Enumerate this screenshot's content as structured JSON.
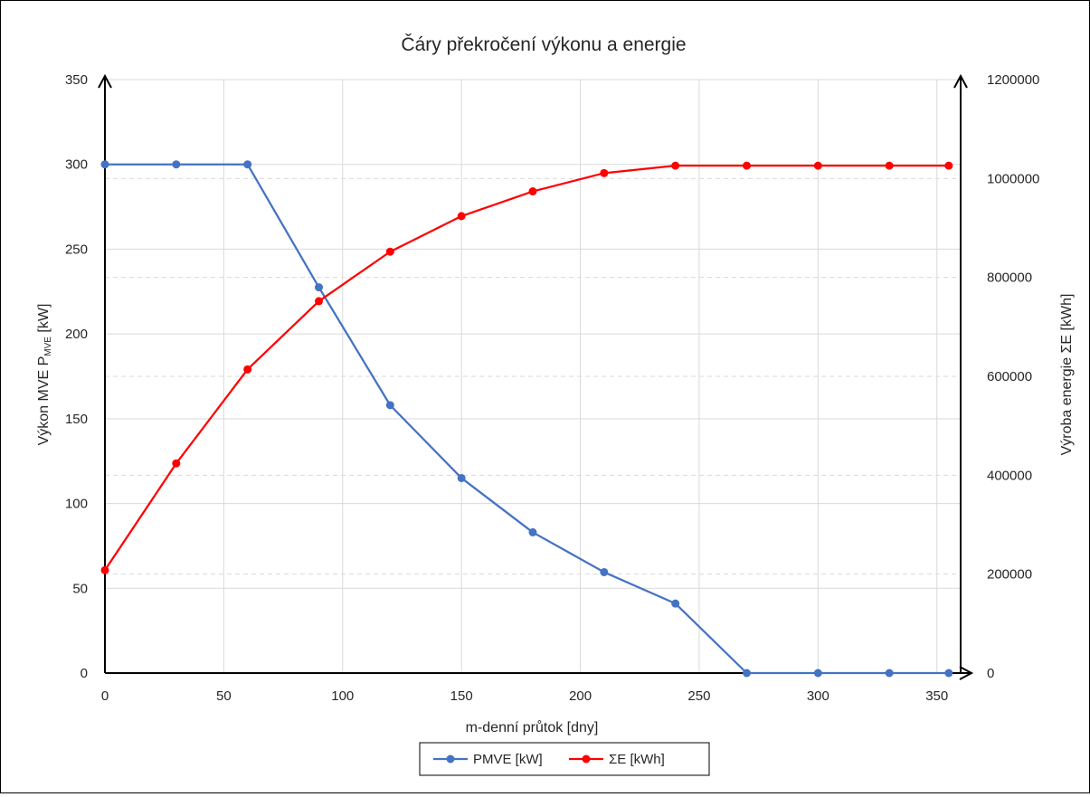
{
  "chart_data": {
    "type": "line",
    "title": "Čáry překročení výkonu a energie",
    "xlabel": "m-denní průtok [dny]",
    "ylabel_left": {
      "main": "Výkon MVE P",
      "sub": "MVE",
      "unit": " [kW]"
    },
    "ylabel_right": "Výroba energie ΣE [kWh]",
    "xlim": [
      0,
      360
    ],
    "ylim_left": [
      0,
      350
    ],
    "ylim_right": [
      0,
      1200000
    ],
    "x_ticks": [
      0,
      50,
      100,
      150,
      200,
      250,
      300,
      350
    ],
    "y_left_ticks": [
      0,
      50,
      100,
      150,
      200,
      250,
      300,
      350
    ],
    "y_right_ticks": [
      0,
      200000,
      400000,
      600000,
      800000,
      1000000,
      1200000
    ],
    "grid": true,
    "legend_position": "bottom",
    "x": [
      0,
      30,
      60,
      90,
      120,
      150,
      180,
      210,
      240,
      270,
      300,
      330,
      355
    ],
    "series": [
      {
        "name": "PMVE [kW]",
        "axis": "left",
        "color": "#4472C4",
        "values": [
          300,
          300,
          300,
          227.5,
          158,
          115,
          83,
          59.5,
          41,
          0,
          0,
          0,
          0
        ]
      },
      {
        "name": "ΣE [kWh]",
        "axis": "right",
        "color": "#FF0000",
        "values": [
          208000,
          424000,
          614000,
          752000,
          852000,
          924000,
          974000,
          1011000,
          1026000,
          1026000,
          1026000,
          1026000,
          1026000
        ]
      }
    ]
  }
}
